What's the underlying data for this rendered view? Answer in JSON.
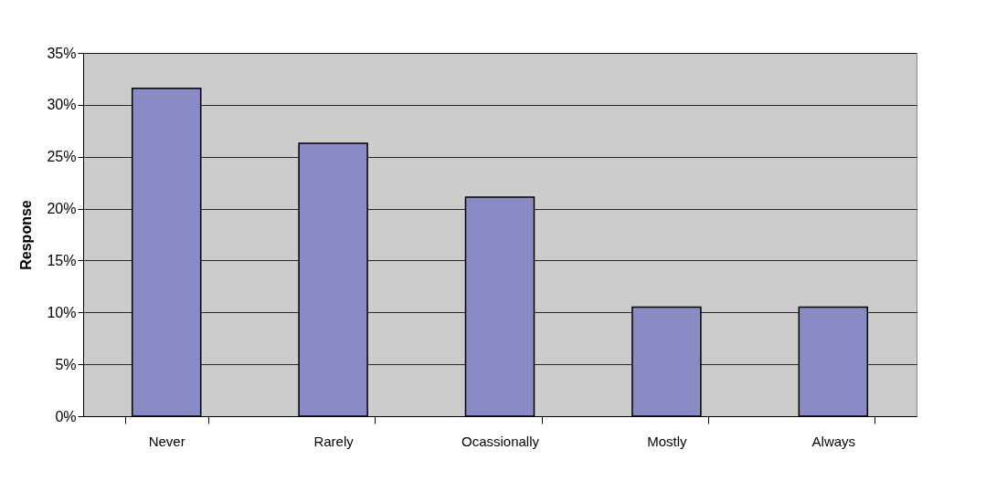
{
  "chart_data": {
    "type": "bar",
    "ylabel": "Response",
    "categories": [
      "Never",
      "Rarely",
      "Ocassionally",
      "Mostly",
      "Always"
    ],
    "values": [
      31.6,
      26.3,
      21.1,
      10.5,
      10.5
    ],
    "color": "#8a8ac4",
    "ylim": [
      0,
      35
    ],
    "yticks": [
      {
        "value": 0,
        "label": "0%"
      },
      {
        "value": 5,
        "label": "5%"
      },
      {
        "value": 10,
        "label": "10%"
      },
      {
        "value": 15,
        "label": "15%"
      },
      {
        "value": 20,
        "label": "20%"
      },
      {
        "value": 25,
        "label": "25%"
      },
      {
        "value": 30,
        "label": "30%"
      },
      {
        "value": 35,
        "label": "35%"
      }
    ],
    "grid": "y"
  }
}
